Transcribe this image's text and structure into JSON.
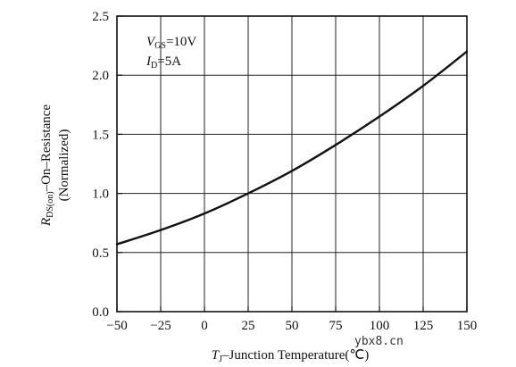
{
  "chart_data": {
    "type": "line",
    "xlabel": {
      "var": "T",
      "sub": "J",
      "rest": "–Junction Temperature(℃)"
    },
    "ylabel": {
      "var": "R",
      "sub": "DS(on)",
      "rest": "–On–Resistance",
      "line2": "(Normalized)"
    },
    "annotations": [
      {
        "var": "V",
        "sub": "GS",
        "rest": "=10V"
      },
      {
        "var": "I",
        "sub": "D",
        "rest": "=5A"
      }
    ],
    "xlim": [
      -50,
      150
    ],
    "ylim": [
      0.0,
      2.5
    ],
    "xticks": [
      "−50",
      "−25",
      "0",
      "25",
      "50",
      "75",
      "100",
      "125",
      "150"
    ],
    "yticks": [
      "0.0",
      "0.5",
      "1.0",
      "1.5",
      "2.0",
      "2.5"
    ],
    "grid": true,
    "series": [
      {
        "x": [
          -50,
          -25,
          0,
          25,
          50,
          75,
          100,
          125,
          150
        ],
        "y": [
          0.57,
          0.69,
          0.83,
          1.0,
          1.19,
          1.41,
          1.65,
          1.91,
          2.2
        ]
      }
    ]
  },
  "watermark": "ybx8.cn"
}
